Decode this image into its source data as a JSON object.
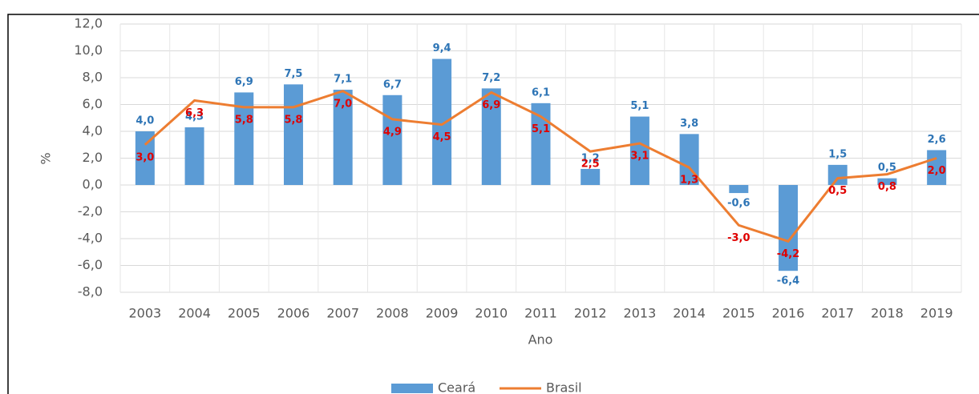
{
  "chart_data": {
    "type": "combo",
    "x_label": "Ano",
    "y_label": "%",
    "categories": [
      "2003",
      "2004",
      "2005",
      "2006",
      "2007",
      "2008",
      "2009",
      "2010",
      "2011",
      "2012",
      "2013",
      "2014",
      "2015",
      "2016",
      "2017",
      "2018",
      "2019"
    ],
    "series": [
      {
        "name": "Ceará",
        "type": "bar",
        "color": "#5B9BD5",
        "label_color": "#2E75B6",
        "values": [
          4.0,
          4.3,
          6.9,
          7.5,
          7.1,
          6.7,
          9.4,
          7.2,
          6.1,
          1.2,
          5.1,
          3.8,
          -0.6,
          -6.4,
          1.5,
          0.5,
          2.6
        ],
        "value_labels": [
          "4,0",
          "4,3",
          "6,9",
          "7,5",
          "7,1",
          "6,7",
          "9,4",
          "7,2",
          "6,1",
          "1,2",
          "5,1",
          "3,8",
          "-0,6",
          "-6,4",
          "1,5",
          "0,5",
          "2,6"
        ]
      },
      {
        "name": "Brasil",
        "type": "line",
        "color": "#ED7D31",
        "label_color": "#E00000",
        "values": [
          3.0,
          6.3,
          5.8,
          5.8,
          7.0,
          4.9,
          4.5,
          6.9,
          5.1,
          2.5,
          3.1,
          1.3,
          -3.0,
          -4.2,
          0.5,
          0.8,
          2.0
        ],
        "value_labels": [
          "3,0",
          "6,3",
          "5,8",
          "5,8",
          "7,0",
          "4,9",
          "4,5",
          "6,9",
          "5,1",
          "2,5",
          "3,1",
          "1,3",
          "-3,0",
          "-4,2",
          "0,5",
          "0,8",
          "2,0"
        ]
      }
    ],
    "ylim": [
      -8,
      12
    ],
    "yticks": [
      {
        "value": -8,
        "label": "-8,0"
      },
      {
        "value": -6,
        "label": "-6,0"
      },
      {
        "value": -4,
        "label": "-4,0"
      },
      {
        "value": -2,
        "label": "-2,0"
      },
      {
        "value": 0,
        "label": "0,0"
      },
      {
        "value": 2,
        "label": "2,0"
      },
      {
        "value": 4,
        "label": "4,0"
      },
      {
        "value": 6,
        "label": "6,0"
      },
      {
        "value": 8,
        "label": "8,0"
      },
      {
        "value": 10,
        "label": "10,0"
      },
      {
        "value": 12,
        "label": "12,0"
      }
    ],
    "grid": true,
    "legend": "bottom"
  }
}
